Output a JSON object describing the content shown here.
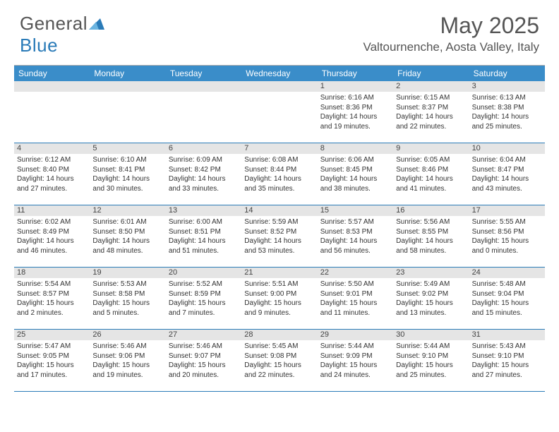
{
  "logo": {
    "textGeneral": "General",
    "textBlue": "Blue"
  },
  "title": "May 2025",
  "location": "Valtournenche, Aosta Valley, Italy",
  "weekdays": [
    "Sunday",
    "Monday",
    "Tuesday",
    "Wednesday",
    "Thursday",
    "Friday",
    "Saturday"
  ],
  "colors": {
    "headerBg": "#3a8dc9",
    "stripBg": "#e5e5e5",
    "rowBorder": "#2a7bb8",
    "logoBlue": "#2a7bb8"
  },
  "weeks": [
    {
      "nums": [
        "",
        "",
        "",
        "",
        "1",
        "2",
        "3"
      ],
      "days": [
        null,
        null,
        null,
        null,
        {
          "sunrise": "6:16 AM",
          "sunset": "8:36 PM",
          "daylight": "14 hours and 19 minutes."
        },
        {
          "sunrise": "6:15 AM",
          "sunset": "8:37 PM",
          "daylight": "14 hours and 22 minutes."
        },
        {
          "sunrise": "6:13 AM",
          "sunset": "8:38 PM",
          "daylight": "14 hours and 25 minutes."
        }
      ]
    },
    {
      "nums": [
        "4",
        "5",
        "6",
        "7",
        "8",
        "9",
        "10"
      ],
      "days": [
        {
          "sunrise": "6:12 AM",
          "sunset": "8:40 PM",
          "daylight": "14 hours and 27 minutes."
        },
        {
          "sunrise": "6:10 AM",
          "sunset": "8:41 PM",
          "daylight": "14 hours and 30 minutes."
        },
        {
          "sunrise": "6:09 AM",
          "sunset": "8:42 PM",
          "daylight": "14 hours and 33 minutes."
        },
        {
          "sunrise": "6:08 AM",
          "sunset": "8:44 PM",
          "daylight": "14 hours and 35 minutes."
        },
        {
          "sunrise": "6:06 AM",
          "sunset": "8:45 PM",
          "daylight": "14 hours and 38 minutes."
        },
        {
          "sunrise": "6:05 AM",
          "sunset": "8:46 PM",
          "daylight": "14 hours and 41 minutes."
        },
        {
          "sunrise": "6:04 AM",
          "sunset": "8:47 PM",
          "daylight": "14 hours and 43 minutes."
        }
      ]
    },
    {
      "nums": [
        "11",
        "12",
        "13",
        "14",
        "15",
        "16",
        "17"
      ],
      "days": [
        {
          "sunrise": "6:02 AM",
          "sunset": "8:49 PM",
          "daylight": "14 hours and 46 minutes."
        },
        {
          "sunrise": "6:01 AM",
          "sunset": "8:50 PM",
          "daylight": "14 hours and 48 minutes."
        },
        {
          "sunrise": "6:00 AM",
          "sunset": "8:51 PM",
          "daylight": "14 hours and 51 minutes."
        },
        {
          "sunrise": "5:59 AM",
          "sunset": "8:52 PM",
          "daylight": "14 hours and 53 minutes."
        },
        {
          "sunrise": "5:57 AM",
          "sunset": "8:53 PM",
          "daylight": "14 hours and 56 minutes."
        },
        {
          "sunrise": "5:56 AM",
          "sunset": "8:55 PM",
          "daylight": "14 hours and 58 minutes."
        },
        {
          "sunrise": "5:55 AM",
          "sunset": "8:56 PM",
          "daylight": "15 hours and 0 minutes."
        }
      ]
    },
    {
      "nums": [
        "18",
        "19",
        "20",
        "21",
        "22",
        "23",
        "24"
      ],
      "days": [
        {
          "sunrise": "5:54 AM",
          "sunset": "8:57 PM",
          "daylight": "15 hours and 2 minutes."
        },
        {
          "sunrise": "5:53 AM",
          "sunset": "8:58 PM",
          "daylight": "15 hours and 5 minutes."
        },
        {
          "sunrise": "5:52 AM",
          "sunset": "8:59 PM",
          "daylight": "15 hours and 7 minutes."
        },
        {
          "sunrise": "5:51 AM",
          "sunset": "9:00 PM",
          "daylight": "15 hours and 9 minutes."
        },
        {
          "sunrise": "5:50 AM",
          "sunset": "9:01 PM",
          "daylight": "15 hours and 11 minutes."
        },
        {
          "sunrise": "5:49 AM",
          "sunset": "9:02 PM",
          "daylight": "15 hours and 13 minutes."
        },
        {
          "sunrise": "5:48 AM",
          "sunset": "9:04 PM",
          "daylight": "15 hours and 15 minutes."
        }
      ]
    },
    {
      "nums": [
        "25",
        "26",
        "27",
        "28",
        "29",
        "30",
        "31"
      ],
      "days": [
        {
          "sunrise": "5:47 AM",
          "sunset": "9:05 PM",
          "daylight": "15 hours and 17 minutes."
        },
        {
          "sunrise": "5:46 AM",
          "sunset": "9:06 PM",
          "daylight": "15 hours and 19 minutes."
        },
        {
          "sunrise": "5:46 AM",
          "sunset": "9:07 PM",
          "daylight": "15 hours and 20 minutes."
        },
        {
          "sunrise": "5:45 AM",
          "sunset": "9:08 PM",
          "daylight": "15 hours and 22 minutes."
        },
        {
          "sunrise": "5:44 AM",
          "sunset": "9:09 PM",
          "daylight": "15 hours and 24 minutes."
        },
        {
          "sunrise": "5:44 AM",
          "sunset": "9:10 PM",
          "daylight": "15 hours and 25 minutes."
        },
        {
          "sunrise": "5:43 AM",
          "sunset": "9:10 PM",
          "daylight": "15 hours and 27 minutes."
        }
      ]
    }
  ]
}
